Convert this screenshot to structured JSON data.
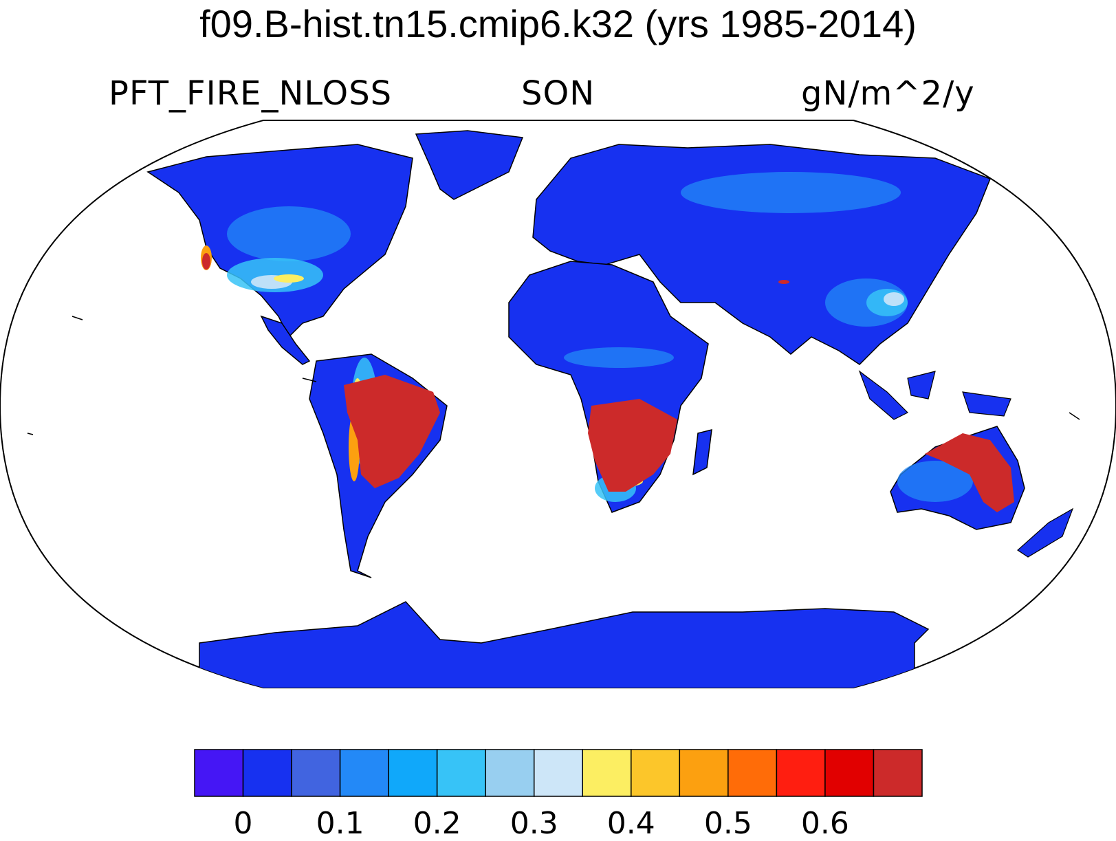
{
  "title": "f09.B-hist.tn15.cmip6.k32 (yrs 1985-2014)",
  "left_subtitle": "PFT_FIRE_NLOSS",
  "center_subtitle": "SON",
  "right_subtitle": "gN/m^2/y",
  "projection": "Robinson",
  "colorbar": {
    "colors": [
      "#4516f5",
      "#1731f0",
      "#4164e0",
      "#2389f7",
      "#10a8fa",
      "#37c3f7",
      "#98cff0",
      "#cde6f8",
      "#fcee62",
      "#fcc62a",
      "#fca010",
      "#ff6c08",
      "#ff1e10",
      "#e10000",
      "#cc2a2a"
    ],
    "tick_labels": [
      "0",
      "0.1",
      "0.2",
      "0.3",
      "0.4",
      "0.5",
      "0.6"
    ]
  },
  "colors": {
    "ocean": "#ffffff",
    "coastline": "#000000"
  }
}
